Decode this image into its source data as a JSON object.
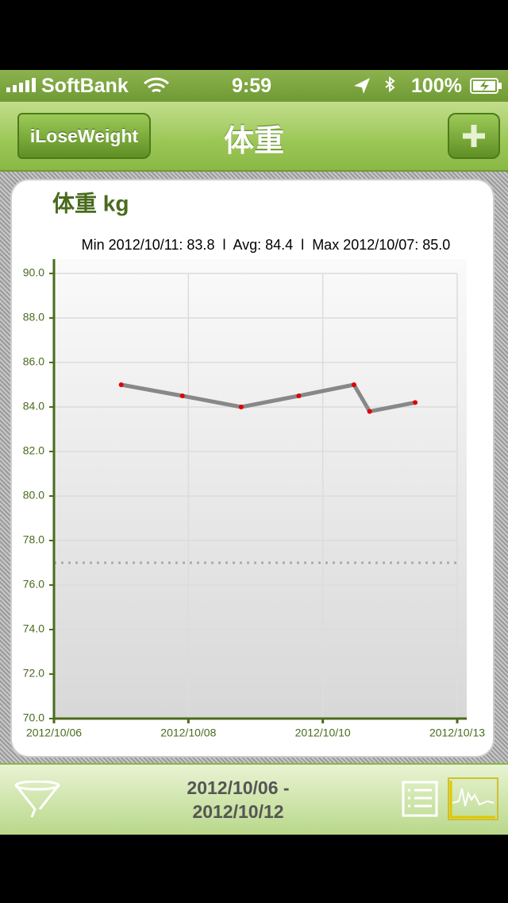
{
  "status_bar": {
    "carrier": "SoftBank",
    "time": "9:59",
    "battery": "100%"
  },
  "nav_bar": {
    "back": "iLoseWeight",
    "title": "体重"
  },
  "chart_data": {
    "type": "line",
    "title": "体重 kg",
    "subtitle": "Min 2012/10/11: 83.8  l  Avg: 84.4  l  Max 2012/10/07: 85.0",
    "x": [
      "2012/10/07 04:00",
      "2012/10/08 05:30",
      "2012/10/09 06:00",
      "2012/10/10 06:00",
      "2012/10/11 05:00",
      "2012/10/11 11:30",
      "2012/10/12 06:30"
    ],
    "values": [
      85.0,
      84.5,
      84.0,
      84.5,
      85.0,
      83.8,
      84.2
    ],
    "color": "#888888",
    "point_color": "#e00000",
    "target_line": 77,
    "xlim": [
      "2012/10/06 00:00",
      "2012/10/13 00:00"
    ],
    "xticks": [
      {
        "value": "2012/10/06 00:00",
        "label": "2012/10/06"
      },
      {
        "value": "2012/10/08 08:00",
        "label": "2012/10/08"
      },
      {
        "value": "2012/10/10 16:00",
        "label": "2012/10/10"
      },
      {
        "value": "2012/10/13 00:00",
        "label": "2012/10/13"
      }
    ],
    "ylim": [
      70,
      90
    ],
    "yticks": [
      {
        "value": 70,
        "label": "70.0"
      },
      {
        "value": 72,
        "label": "72.0"
      },
      {
        "value": 74,
        "label": "74.0"
      },
      {
        "value": 76,
        "label": "76.0"
      },
      {
        "value": 78,
        "label": "78.0"
      },
      {
        "value": 80,
        "label": "80.0"
      },
      {
        "value": 82,
        "label": "82.0"
      },
      {
        "value": 84,
        "label": "84.0"
      },
      {
        "value": 86,
        "label": "86.0"
      },
      {
        "value": 88,
        "label": "88.0"
      },
      {
        "value": 90,
        "label": "90.0"
      }
    ],
    "grid": true
  },
  "toolbar": {
    "range_from": "2012/10/06 -",
    "range_to": "2012/10/12"
  }
}
